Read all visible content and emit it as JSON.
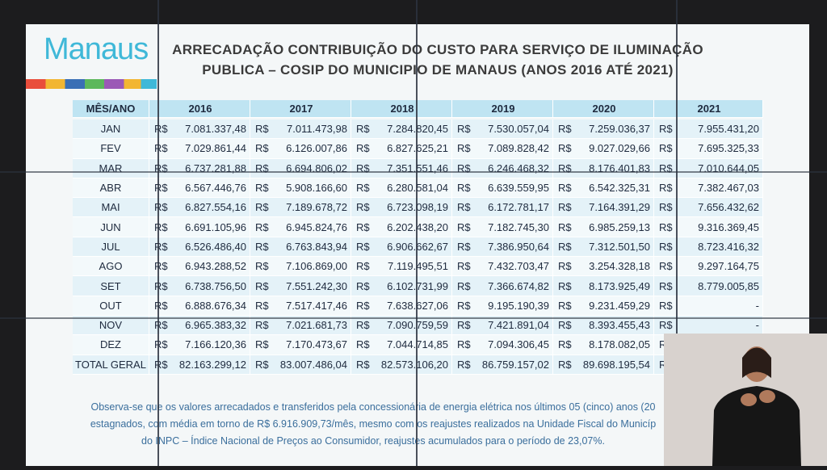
{
  "logo": "Manaus",
  "header": {
    "title_lines": [
      "ARRECADAÇÃO CONTRIBUIÇÃO DO CUSTO PARA SERVIÇO DE ILUMINAÇÃO",
      "PUBLICA – COSIP DO MUNICIPIO DE MANAUS (ANOS 2016 ATÉ 2021)"
    ]
  },
  "table": {
    "corner": "MÊS/ANO",
    "years": [
      "2016",
      "2017",
      "2018",
      "2019",
      "2020",
      "2021"
    ],
    "currency": "R$",
    "rows": [
      {
        "month": "JAN",
        "values": [
          "7.081.337,48",
          "7.011.473,98",
          "7.284.820,45",
          "7.530.057,04",
          "7.259.036,37",
          "7.955.431,20"
        ]
      },
      {
        "month": "FEV",
        "values": [
          "7.029.861,44",
          "6.126.007,86",
          "6.827.625,21",
          "7.089.828,42",
          "9.027.029,66",
          "7.695.325,33"
        ]
      },
      {
        "month": "MAR",
        "values": [
          "6.737.281,88",
          "6.694.806,02",
          "7.351.551,46",
          "6.246.468,32",
          "8.176.401,83",
          "7.010.644,05"
        ]
      },
      {
        "month": "ABR",
        "values": [
          "6.567.446,76",
          "5.908.166,60",
          "6.280.581,04",
          "6.639.559,95",
          "6.542.325,31",
          "7.382.467,03"
        ]
      },
      {
        "month": "MAI",
        "values": [
          "6.827.554,16",
          "7.189.678,72",
          "6.723.098,19",
          "6.172.781,17",
          "7.164.391,29",
          "7.656.432,62"
        ]
      },
      {
        "month": "JUN",
        "values": [
          "6.691.105,96",
          "6.945.824,76",
          "6.202.438,20",
          "7.182.745,30",
          "6.985.259,13",
          "9.316.369,45"
        ]
      },
      {
        "month": "JUL",
        "values": [
          "6.526.486,40",
          "6.763.843,94",
          "6.906.662,67",
          "7.386.950,64",
          "7.312.501,50",
          "8.723.416,32"
        ]
      },
      {
        "month": "AGO",
        "values": [
          "6.943.288,52",
          "7.106.869,00",
          "7.119.495,51",
          "7.432.703,47",
          "3.254.328,18",
          "9.297.164,75"
        ]
      },
      {
        "month": "SET",
        "values": [
          "6.738.756,50",
          "7.551.242,30",
          "6.102.731,99",
          "7.366.674,82",
          "8.173.925,49",
          "8.779.005,85"
        ]
      },
      {
        "month": "OUT",
        "values": [
          "6.888.676,34",
          "7.517.417,46",
          "7.638.627,06",
          "9.195.190,39",
          "9.231.459,29",
          "-"
        ]
      },
      {
        "month": "NOV",
        "values": [
          "6.965.383,32",
          "7.021.681,73",
          "7.090.759,59",
          "7.421.891,04",
          "8.393.455,43",
          "-"
        ]
      },
      {
        "month": "DEZ",
        "values": [
          "7.166.120,36",
          "7.170.473,67",
          "7.044.714,85",
          "7.094.306,45",
          "8.178.082,05",
          null
        ]
      },
      {
        "month": "TOTAL GERAL",
        "values": [
          "82.163.299,12",
          "83.007.486,04",
          "82.573.106,20",
          "86.759.157,02",
          "89.698.195,54",
          null
        ]
      }
    ]
  },
  "footnote": [
    "Observa-se que os valores arrecadados e transferidos pela concessionária de energia elétrica nos últimos 05 (cinco) anos (20",
    "estagnados, com média em torno de R$ 6.916.909,73/mês, mesmo com os reajustes realizados na Unidade Fiscal do Municíp",
    "do INPC – Índice Nacional de Preços ao Consumidor, reajustes acumulados para o período de 23,07%."
  ]
}
